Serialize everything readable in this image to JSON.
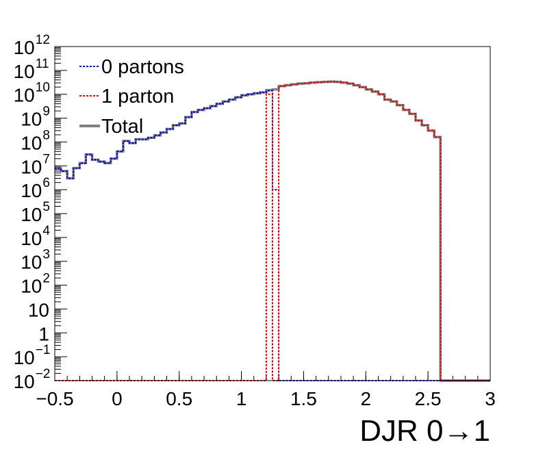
{
  "chart_data": {
    "type": "line",
    "title": "",
    "xlabel": "DJR 0→1",
    "ylabel": "",
    "xlim": [
      -0.5,
      3.0
    ],
    "ylim": [
      0.01,
      1000000000000.0
    ],
    "y_scale": "log",
    "grid": false,
    "legend_position": "top-left",
    "x_ticks": [
      "−0.5",
      "0",
      "0.5",
      "1",
      "1.5",
      "2",
      "2.5",
      "3"
    ],
    "y_ticks": [
      {
        "base": "10",
        "exp": "−2"
      },
      {
        "base": "10",
        "exp": "−1"
      },
      {
        "base": "1",
        "exp": ""
      },
      {
        "base": "10",
        "exp": ""
      },
      {
        "base": "10",
        "exp": "2"
      },
      {
        "base": "10",
        "exp": "3"
      },
      {
        "base": "10",
        "exp": "4"
      },
      {
        "base": "10",
        "exp": "5"
      },
      {
        "base": "10",
        "exp": "6"
      },
      {
        "base": "10",
        "exp": "7"
      },
      {
        "base": "10",
        "exp": "8"
      },
      {
        "base": "10",
        "exp": "9"
      },
      {
        "base": "10",
        "exp": "10"
      },
      {
        "base": "10",
        "exp": "11"
      },
      {
        "base": "10",
        "exp": "12"
      }
    ],
    "bin_width": 0.05,
    "series": [
      {
        "name": "0 partons",
        "color": "#0000cc",
        "style": "dotted",
        "x_start": -0.5,
        "values": [
          8000000.0,
          6000000.0,
          3000000.0,
          8000000.0,
          13000000.0,
          30000000.0,
          18000000.0,
          15000000.0,
          13000000.0,
          20000000.0,
          40000000.0,
          110000000.0,
          90000000.0,
          130000000.0,
          130000000.0,
          150000000.0,
          190000000.0,
          250000000.0,
          350000000.0,
          500000000.0,
          600000000.0,
          1100000000.0,
          1800000000.0,
          2200000000.0,
          2600000000.0,
          3200000000.0,
          4000000000.0,
          5000000000.0,
          6000000000.0,
          7500000000.0,
          9000000000.0,
          10000000000.0,
          11000000000.0,
          12000000000.0,
          14000000000.0,
          1000000.0,
          0.01,
          0.01,
          0.01,
          0.01,
          0.01,
          0.01,
          0.01,
          0.01,
          0.01,
          0.01,
          0.01,
          0.01,
          0.01,
          0.01,
          0.01,
          0.01,
          0.01,
          0.01,
          0.01,
          0.01,
          0.01,
          0.01,
          0.01,
          0.01,
          0.01,
          0.01,
          0.01,
          0.01,
          0.01,
          0.01,
          0.01,
          0.01,
          0.01,
          0.01
        ]
      },
      {
        "name": "1 parton",
        "color": "#dd0000",
        "style": "dotted",
        "x_start": -0.5,
        "values": [
          0.01,
          0.01,
          0.01,
          0.01,
          0.01,
          0.01,
          0.01,
          0.01,
          0.01,
          0.01,
          0.01,
          0.01,
          0.01,
          0.01,
          0.01,
          0.01,
          0.01,
          0.01,
          0.01,
          0.01,
          0.01,
          0.01,
          0.01,
          0.01,
          0.01,
          0.01,
          0.01,
          0.01,
          0.01,
          0.01,
          0.01,
          0.01,
          0.01,
          0.01,
          10000000000.0,
          0.01,
          22000000000.0,
          24000000000.0,
          26000000000.0,
          28000000000.0,
          29000000000.0,
          31000000000.0,
          32000000000.0,
          33000000000.0,
          34000000000.0,
          33000000000.0,
          31000000000.0,
          28000000000.0,
          24000000000.0,
          20000000000.0,
          16000000000.0,
          13000000000.0,
          10000000000.0,
          6000000000.0,
          5000000000.0,
          3500000000.0,
          2200000000.0,
          1500000000.0,
          800000000.0,
          500000000.0,
          300000000.0,
          160000000.0,
          0.01,
          0.01,
          0.01,
          0.01,
          0.01,
          0.01,
          0.01,
          0.01
        ]
      },
      {
        "name": "Total",
        "color": "#808080",
        "style": "solid",
        "x_start": -0.5,
        "values": [
          8000000.0,
          6000000.0,
          3000000.0,
          8000000.0,
          13000000.0,
          30000000.0,
          18000000.0,
          15000000.0,
          13000000.0,
          20000000.0,
          40000000.0,
          110000000.0,
          90000000.0,
          130000000.0,
          130000000.0,
          150000000.0,
          190000000.0,
          250000000.0,
          350000000.0,
          500000000.0,
          600000000.0,
          1100000000.0,
          1800000000.0,
          2200000000.0,
          2600000000.0,
          3200000000.0,
          4000000000.0,
          5000000000.0,
          6000000000.0,
          7500000000.0,
          9000000000.0,
          10000000000.0,
          11000000000.0,
          12000000000.0,
          15000000000.0,
          16000000000.0,
          22000000000.0,
          24000000000.0,
          26000000000.0,
          28000000000.0,
          29000000000.0,
          31000000000.0,
          32000000000.0,
          33000000000.0,
          34000000000.0,
          33000000000.0,
          31000000000.0,
          28000000000.0,
          24000000000.0,
          20000000000.0,
          16000000000.0,
          13000000000.0,
          10000000000.0,
          6000000000.0,
          5000000000.0,
          3500000000.0,
          2200000000.0,
          1500000000.0,
          800000000.0,
          500000000.0,
          300000000.0,
          160000000.0,
          0.01,
          0.01,
          0.01,
          0.01,
          0.01,
          0.01,
          0.01,
          0.01
        ]
      }
    ]
  }
}
